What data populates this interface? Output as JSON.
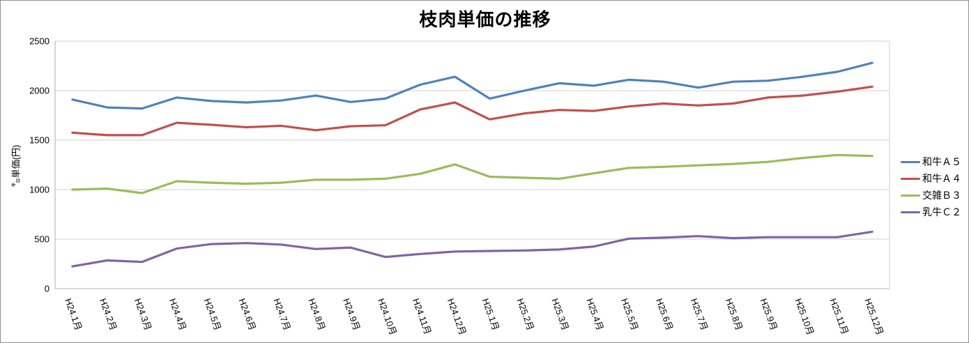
{
  "chart_data": {
    "type": "line",
    "title": "枝肉単価の推移",
    "xlabel": "",
    "ylabel": "㌔単価(円)",
    "ylim": [
      0,
      2500
    ],
    "yticks": [
      0,
      500,
      1000,
      1500,
      2000,
      2500
    ],
    "grid": true,
    "legend_position": "right",
    "categories": [
      "H24.1月",
      "H24.2月",
      "H24.3月",
      "H24.4月",
      "H24.5月",
      "H24.6月",
      "H24.7月",
      "H24.8月",
      "H24.9月",
      "H24.10月",
      "H24.11月",
      "H24.12月",
      "H25.1月",
      "H25.2月",
      "H25.3月",
      "H25.4月",
      "H25.5月",
      "H25.6月",
      "H25.7月",
      "H25.8月",
      "H25.9月",
      "H25.10月",
      "H25.11月",
      "H25.12月"
    ],
    "series": [
      {
        "name": "和牛Ａ５",
        "color": "#4F81BD",
        "values": [
          1910,
          1830,
          1820,
          1930,
          1895,
          1880,
          1900,
          1950,
          1885,
          1920,
          2060,
          2140,
          1920,
          2000,
          2075,
          2050,
          2110,
          2090,
          2030,
          2090,
          2100,
          2140,
          2190,
          2280
        ]
      },
      {
        "name": "和牛Ａ４",
        "color": "#C0504D",
        "values": [
          1575,
          1550,
          1550,
          1675,
          1655,
          1630,
          1645,
          1600,
          1640,
          1650,
          1810,
          1880,
          1710,
          1770,
          1805,
          1795,
          1840,
          1870,
          1850,
          1870,
          1930,
          1950,
          1990,
          2040
        ]
      },
      {
        "name": "交雑Ｂ３",
        "color": "#9BBB59",
        "values": [
          1000,
          1010,
          965,
          1085,
          1070,
          1060,
          1070,
          1100,
          1100,
          1110,
          1160,
          1255,
          1130,
          1120,
          1110,
          1165,
          1220,
          1230,
          1245,
          1260,
          1280,
          1320,
          1350,
          1340
        ]
      },
      {
        "name": "乳牛Ｃ２",
        "color": "#8064A2",
        "values": [
          225,
          285,
          270,
          405,
          450,
          460,
          445,
          400,
          415,
          320,
          350,
          375,
          380,
          385,
          395,
          425,
          505,
          515,
          530,
          510,
          520,
          520,
          520,
          575
        ]
      }
    ],
    "colors": {
      "gridline": "#D9D9D9",
      "axis_line": "#BFBFBF",
      "text": "#000000"
    }
  }
}
